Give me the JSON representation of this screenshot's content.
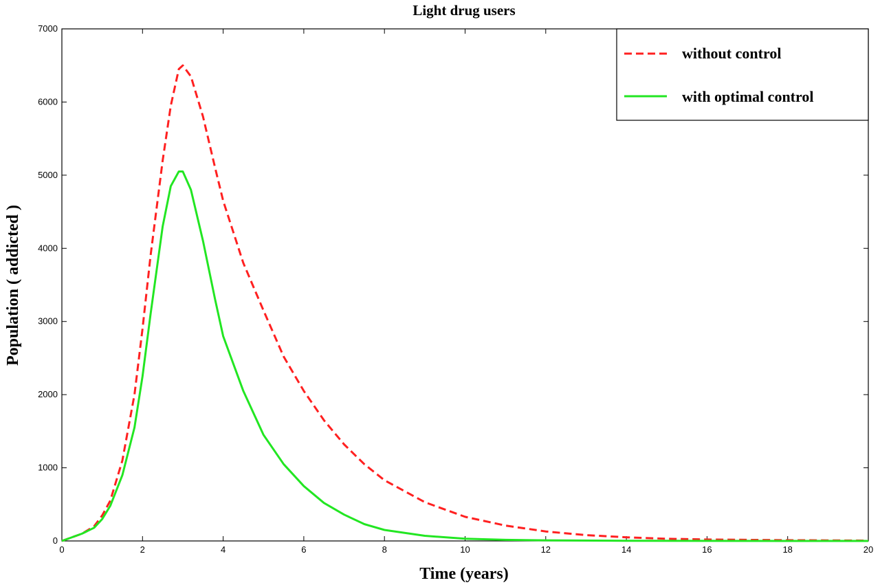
{
  "chart_data": {
    "type": "line",
    "title": "Light drug users",
    "xlabel": "Time (years)",
    "ylabel": "Population ( addicted )",
    "xlim": [
      0,
      20
    ],
    "ylim": [
      0,
      7000
    ],
    "x_ticks": [
      0,
      2,
      4,
      6,
      8,
      10,
      12,
      14,
      16,
      18,
      20
    ],
    "y_ticks": [
      0,
      1000,
      2000,
      3000,
      4000,
      5000,
      6000,
      7000
    ],
    "x_tick_labels": [
      "0",
      "2",
      "4",
      "6",
      "8",
      "10",
      "12",
      "14",
      "16",
      "18",
      "20"
    ],
    "y_tick_labels": [
      "0",
      "1000",
      "2000",
      "3000",
      "4000",
      "5000",
      "6000",
      "7000"
    ],
    "grid": false,
    "legend_position": "top-right",
    "series": [
      {
        "name": "without control",
        "color": "#ff2020",
        "style": "dashed",
        "x": [
          0,
          0.5,
          0.8,
          1.0,
          1.2,
          1.5,
          1.8,
          2.0,
          2.2,
          2.5,
          2.7,
          2.9,
          3.0,
          3.2,
          3.5,
          3.8,
          4.0,
          4.5,
          5.0,
          5.5,
          6.0,
          6.5,
          7.0,
          7.5,
          8.0,
          9.0,
          10.0,
          11.0,
          12.0,
          13.0,
          14.0,
          15.0,
          16.0,
          18.0,
          20.0
        ],
        "y": [
          0,
          100,
          200,
          350,
          550,
          1100,
          2000,
          2900,
          3900,
          5200,
          5950,
          6450,
          6500,
          6350,
          5800,
          5100,
          4650,
          3800,
          3150,
          2520,
          2050,
          1650,
          1320,
          1050,
          830,
          530,
          330,
          210,
          130,
          80,
          50,
          30,
          20,
          10,
          5
        ]
      },
      {
        "name": "with optimal control",
        "color": "#22e622",
        "style": "solid",
        "x": [
          0,
          0.5,
          0.8,
          1.0,
          1.2,
          1.5,
          1.8,
          2.0,
          2.2,
          2.5,
          2.7,
          2.9,
          3.0,
          3.2,
          3.5,
          3.8,
          4.0,
          4.5,
          5.0,
          5.5,
          6.0,
          6.5,
          7.0,
          7.5,
          8.0,
          9.0,
          10.0,
          11.0,
          12.0,
          14.0,
          16.0,
          20.0
        ],
        "y": [
          0,
          100,
          180,
          300,
          480,
          900,
          1550,
          2250,
          3100,
          4300,
          4850,
          5050,
          5050,
          4800,
          4100,
          3300,
          2800,
          2050,
          1450,
          1050,
          750,
          520,
          360,
          230,
          150,
          70,
          30,
          15,
          8,
          3,
          1,
          0
        ]
      }
    ]
  }
}
